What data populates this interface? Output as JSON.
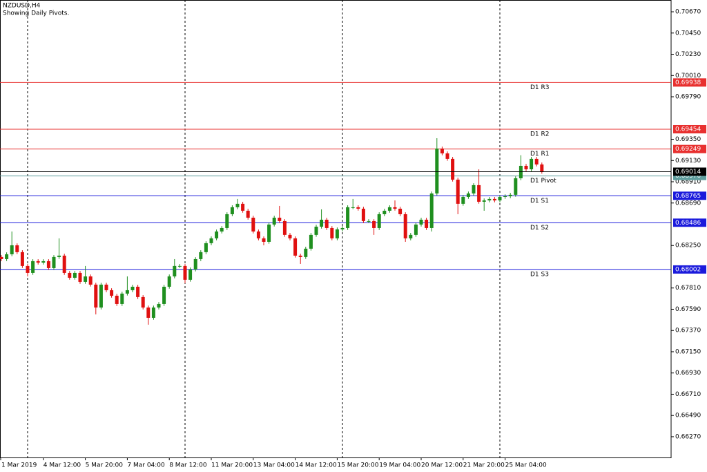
{
  "chart_data": {
    "type": "candlestick",
    "title": "NZDUSD,H4",
    "subtitle": "Showing Daily Pivots.",
    "categories": [
      "1 Mar 2019",
      null,
      null,
      null,
      null,
      null,
      null,
      null,
      null,
      "4 Mar 12:00",
      null,
      null,
      null,
      null,
      null,
      null,
      null,
      "5 Mar 20:00",
      null,
      null,
      null,
      null,
      null,
      null,
      null,
      "7 Mar 04:00",
      null,
      null,
      null,
      null,
      null,
      null,
      null,
      "8 Mar 12:00",
      null,
      null,
      null,
      null,
      null,
      null,
      null,
      "11 Mar 20:00",
      null,
      null,
      null,
      null,
      null,
      null,
      null,
      "13 Mar 04:00",
      null,
      null,
      null,
      null,
      null,
      null,
      null,
      "14 Mar 12:00",
      null,
      null,
      null,
      null,
      null,
      null,
      null,
      "15 Mar 20:00",
      null,
      null,
      null,
      null,
      null,
      null,
      null,
      "19 Mar 04:00",
      null,
      null,
      null,
      null,
      null,
      null,
      null,
      "20 Mar 12:00",
      null,
      null,
      null,
      null,
      null,
      null,
      null,
      "21 Mar 20:00",
      null,
      null,
      null,
      null,
      null,
      null,
      null,
      "25 Mar 04:00",
      null,
      null,
      null,
      null,
      null,
      null,
      null
    ],
    "open": [
      0.681,
      0.68131,
      0.68109,
      0.68159,
      0.68252,
      0.68181,
      0.68038,
      0.67966,
      0.68088,
      0.68073,
      0.68088,
      0.68016,
      0.68131,
      0.68145,
      0.67966,
      0.67916,
      0.67966,
      0.67873,
      0.6793,
      0.67845,
      0.67608,
      0.67845,
      0.67787,
      0.6773,
      0.67644,
      0.67752,
      0.67787,
      0.67823,
      0.67716,
      0.67608,
      0.67501,
      0.67608,
      0.67644,
      0.67823,
      0.6793,
      0.68038,
      0.68038,
      0.67895,
      0.68002,
      0.68109,
      0.68181,
      0.68274,
      0.68324,
      0.68395,
      0.68431,
      0.68574,
      0.68646,
      0.68682,
      0.6861,
      0.68538,
      0.68395,
      0.68324,
      0.68288,
      0.68467,
      0.68538,
      0.68503,
      0.6836,
      0.68324,
      0.68145,
      0.68131,
      0.68217,
      0.6836,
      0.68445,
      0.68517,
      0.68431,
      0.68324,
      0.68417,
      0.68431,
      0.68646,
      0.68646,
      0.68631,
      0.68503,
      0.68503,
      0.68431,
      0.68574,
      0.6861,
      0.68646,
      0.68631,
      0.68574,
      0.68324,
      0.6836,
      0.68467,
      0.68517,
      0.68431,
      0.68789,
      0.69254,
      0.69204,
      0.69147,
      0.68932,
      0.68682,
      0.68753,
      0.68789,
      0.68875,
      0.68703,
      0.68717,
      0.68732,
      0.68717,
      0.68753,
      0.6876,
      0.68775,
      0.68946,
      0.69075,
      0.69039,
      0.69147,
      0.69089
    ],
    "high": [
      0.68151,
      0.68151,
      0.68179,
      0.68395,
      0.68272,
      0.68201,
      0.68058,
      0.68108,
      0.68108,
      0.68108,
      0.68108,
      0.68151,
      0.68324,
      0.68165,
      0.67986,
      0.67986,
      0.67986,
      0.68038,
      0.6795,
      0.67865,
      0.67865,
      0.67865,
      0.67807,
      0.6775,
      0.67772,
      0.6793,
      0.67843,
      0.67843,
      0.67736,
      0.67628,
      0.67628,
      0.67664,
      0.67843,
      0.6795,
      0.68109,
      0.68058,
      0.68058,
      0.68022,
      0.68129,
      0.68201,
      0.68294,
      0.68344,
      0.68415,
      0.68451,
      0.68594,
      0.68666,
      0.68732,
      0.68702,
      0.6863,
      0.68558,
      0.68415,
      0.68344,
      0.68487,
      0.68558,
      0.6866,
      0.68523,
      0.6838,
      0.68344,
      0.68165,
      0.68237,
      0.6838,
      0.68465,
      0.68624,
      0.68537,
      0.68451,
      0.68437,
      0.68451,
      0.68666,
      0.68732,
      0.68666,
      0.68651,
      0.68523,
      0.68523,
      0.68594,
      0.6863,
      0.68666,
      0.68717,
      0.68651,
      0.68594,
      0.6838,
      0.68487,
      0.68537,
      0.68537,
      0.68809,
      0.69361,
      0.69274,
      0.69224,
      0.69167,
      0.68952,
      0.68773,
      0.68809,
      0.68895,
      0.69039,
      0.68737,
      0.68752,
      0.68752,
      0.68773,
      0.6878,
      0.68795,
      0.68966,
      0.69185,
      0.69095,
      0.69167,
      0.69167,
      0.69109
    ],
    "low": [
      0.6808,
      0.68089,
      0.68089,
      0.68139,
      0.68161,
      0.68018,
      0.6793,
      0.67946,
      0.68053,
      0.68053,
      0.67996,
      0.67996,
      0.68111,
      0.67946,
      0.67896,
      0.67896,
      0.67853,
      0.67853,
      0.67825,
      0.67537,
      0.67588,
      0.67767,
      0.6771,
      0.67624,
      0.67624,
      0.67732,
      0.67767,
      0.67696,
      0.67588,
      0.6743,
      0.67481,
      0.67588,
      0.67624,
      0.67803,
      0.6791,
      0.68018,
      0.67859,
      0.67875,
      0.67982,
      0.68089,
      0.68161,
      0.68254,
      0.68304,
      0.68375,
      0.68411,
      0.68554,
      0.68626,
      0.6859,
      0.68518,
      0.68375,
      0.68304,
      0.68252,
      0.68268,
      0.68447,
      0.68483,
      0.6834,
      0.68304,
      0.68125,
      0.68059,
      0.68111,
      0.68197,
      0.6834,
      0.68425,
      0.68411,
      0.68304,
      0.68304,
      0.68397,
      0.68411,
      0.68626,
      0.68611,
      0.68483,
      0.68483,
      0.6836,
      0.68411,
      0.68554,
      0.6859,
      0.68611,
      0.68554,
      0.68288,
      0.68304,
      0.6834,
      0.68447,
      0.68411,
      0.68395,
      0.68769,
      0.69184,
      0.69127,
      0.68912,
      0.68574,
      0.68662,
      0.68733,
      0.68769,
      0.68683,
      0.6861,
      0.68697,
      0.68697,
      0.68697,
      0.68733,
      0.6874,
      0.68755,
      0.68926,
      0.69019,
      0.69019,
      0.69069,
      0.68994
    ],
    "close": [
      0.68131,
      0.68109,
      0.68159,
      0.68252,
      0.68181,
      0.68038,
      0.67966,
      0.68088,
      0.68073,
      0.68088,
      0.68016,
      0.68131,
      0.68145,
      0.67966,
      0.67916,
      0.67966,
      0.67873,
      0.6793,
      0.67845,
      0.67608,
      0.67845,
      0.67787,
      0.6773,
      0.67644,
      0.67752,
      0.67787,
      0.67823,
      0.67716,
      0.67608,
      0.67501,
      0.67608,
      0.67644,
      0.67823,
      0.6793,
      0.68038,
      0.68038,
      0.67895,
      0.68002,
      0.68109,
      0.68181,
      0.68274,
      0.68324,
      0.68395,
      0.68431,
      0.68574,
      0.68646,
      0.68682,
      0.6861,
      0.68538,
      0.68395,
      0.68324,
      0.68288,
      0.68467,
      0.68538,
      0.68503,
      0.6836,
      0.68324,
      0.68145,
      0.68131,
      0.68217,
      0.6836,
      0.68445,
      0.68517,
      0.68431,
      0.68324,
      0.68417,
      0.68431,
      0.68646,
      0.68646,
      0.68631,
      0.68503,
      0.68503,
      0.68431,
      0.68574,
      0.6861,
      0.68646,
      0.68631,
      0.68574,
      0.68324,
      0.6836,
      0.68467,
      0.68517,
      0.68431,
      0.68789,
      0.69254,
      0.69204,
      0.69147,
      0.68932,
      0.68682,
      0.68753,
      0.68789,
      0.68875,
      0.68703,
      0.68717,
      0.68732,
      0.68717,
      0.68753,
      0.6876,
      0.68775,
      0.68946,
      0.69075,
      0.69039,
      0.69147,
      0.69089,
      0.69014
    ],
    "up_color": "#1f8f1f",
    "down_color": "#e01010",
    "last_price_color": "#000000",
    "levels": {
      "names": [
        "D1 R3",
        "D1 R2",
        "D1 R1",
        "D1 Pivot",
        "D1 S1",
        "D1 S2",
        "D1 S3"
      ],
      "values": [
        0.69938,
        0.69454,
        0.69249,
        0.6897,
        0.68765,
        0.68486,
        0.68002
      ],
      "value_labels": [
        "0.69938",
        "0.69454",
        "0.69249",
        "0.68970",
        "0.68765",
        "0.68486",
        "0.68002"
      ],
      "colors": [
        "#e8302f",
        "#e8302f",
        "#e8302f",
        "#5f9e9e",
        "#1a1adc",
        "#1a1adc",
        "#1a1adc"
      ]
    },
    "ylim": [
      0.66055,
      0.70792
    ],
    "yticks": [
      {
        "value": 0.7067,
        "label": "0.70670"
      },
      {
        "value": 0.7045,
        "label": "0.70450"
      },
      {
        "value": 0.7023,
        "label": "0.70230"
      },
      {
        "value": 0.7001,
        "label": "0.70010"
      },
      {
        "value": 0.6979,
        "label": "0.69790"
      },
      {
        "value": 0.6935,
        "label": "0.69350"
      },
      {
        "value": 0.6913,
        "label": "0.69130"
      },
      {
        "value": 0.6891,
        "label": "0.68910"
      },
      {
        "value": 0.6869,
        "label": "0.68690"
      },
      {
        "value": 0.6825,
        "label": "0.68250"
      },
      {
        "value": 0.6781,
        "label": "0.67810"
      },
      {
        "value": 0.6759,
        "label": "0.67590"
      },
      {
        "value": 0.6737,
        "label": "0.67370"
      },
      {
        "value": 0.6715,
        "label": "0.67150"
      },
      {
        "value": 0.6693,
        "label": "0.66930"
      },
      {
        "value": 0.6671,
        "label": "0.66710"
      },
      {
        "value": 0.6649,
        "label": "0.66490"
      },
      {
        "value": 0.6627,
        "label": "0.66270"
      }
    ]
  }
}
